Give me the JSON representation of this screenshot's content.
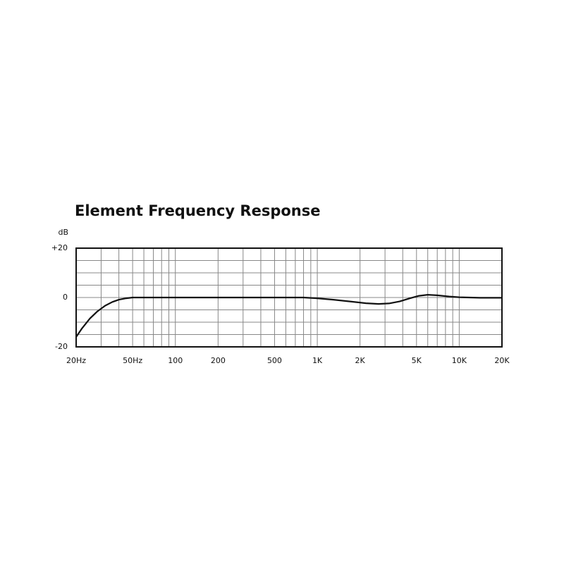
{
  "chart_data": {
    "type": "line",
    "title": "Element Frequency Response",
    "y_label": "dB",
    "x": [
      20,
      22,
      25,
      28,
      32,
      36,
      40,
      45,
      50,
      60,
      100,
      300,
      600,
      800,
      1000,
      1300,
      1700,
      2200,
      2700,
      3200,
      3800,
      4500,
      5200,
      6000,
      7000,
      8500,
      10000,
      14000,
      20000
    ],
    "values": [
      -16,
      -12.5,
      -8.5,
      -5.8,
      -3.3,
      -1.8,
      -0.9,
      -0.3,
      0,
      0,
      0,
      0,
      0,
      0,
      -0.3,
      -0.9,
      -1.6,
      -2.3,
      -2.6,
      -2.4,
      -1.6,
      -0.3,
      0.7,
      1.1,
      0.9,
      0.4,
      0.1,
      -0.1,
      -0.1
    ],
    "color": "#111111",
    "log_x": true,
    "xlim": [
      20,
      20000
    ],
    "ylim": [
      -20,
      20
    ],
    "xticks": [
      {
        "value": 20,
        "label": "20Hz"
      },
      {
        "value": 50,
        "label": "50Hz"
      },
      100,
      200,
      500,
      {
        "value": 1000,
        "label": "1K"
      },
      {
        "value": 2000,
        "label": "2K"
      },
      {
        "value": 5000,
        "label": "5K"
      },
      {
        "value": 10000,
        "label": "10K"
      },
      {
        "value": 20000,
        "label": "20K"
      }
    ],
    "yticks": [
      {
        "value": 20,
        "label": "+20"
      },
      0,
      -20
    ],
    "xgrid": [
      30,
      40,
      50,
      60,
      70,
      80,
      90,
      100,
      200,
      300,
      400,
      500,
      600,
      700,
      800,
      900,
      1000,
      2000,
      3000,
      4000,
      5000,
      6000,
      7000,
      8000,
      9000,
      10000
    ],
    "ygrid": [
      -15,
      -10,
      -5,
      0,
      5,
      10,
      15
    ],
    "grid": true
  }
}
